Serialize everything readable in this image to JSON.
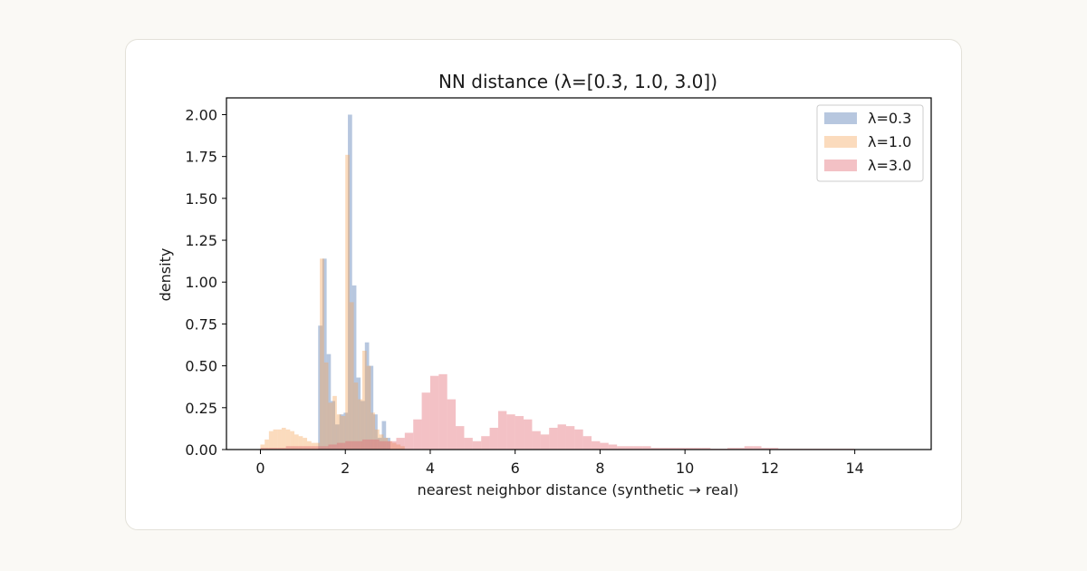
{
  "chart_data": {
    "type": "histogram",
    "title": "NN distance (λ=[0.3, 1.0, 3.0])",
    "xlabel": "nearest neighbor distance (synthetic → real)",
    "ylabel": "density",
    "xlim": [
      -0.8,
      15.8
    ],
    "ylim": [
      0,
      2.1
    ],
    "xticks": [
      "0",
      "2",
      "4",
      "6",
      "8",
      "10",
      "12",
      "14"
    ],
    "xtick_values": [
      0,
      2,
      4,
      6,
      8,
      10,
      12,
      14
    ],
    "yticks": [
      "0.00",
      "0.25",
      "0.50",
      "0.75",
      "1.00",
      "1.25",
      "1.50",
      "1.75",
      "2.00"
    ],
    "ytick_values": [
      0,
      0.25,
      0.5,
      0.75,
      1.0,
      1.25,
      1.5,
      1.75,
      2.0
    ],
    "legend_position": "top-right",
    "grid": false,
    "series": [
      {
        "name": "λ=0.3",
        "color": "#4c72b0",
        "bins": [
          [
            1.36,
            1.46,
            0.74
          ],
          [
            1.46,
            1.56,
            1.14
          ],
          [
            1.56,
            1.66,
            0.57
          ],
          [
            1.66,
            1.76,
            0.29
          ],
          [
            1.76,
            1.86,
            0.15
          ],
          [
            1.86,
            1.96,
            0.21
          ],
          [
            1.96,
            2.06,
            0.22
          ],
          [
            2.06,
            2.16,
            2.0
          ],
          [
            2.16,
            2.26,
            0.98
          ],
          [
            2.26,
            2.36,
            0.43
          ],
          [
            2.36,
            2.46,
            0.29
          ],
          [
            2.46,
            2.56,
            0.64
          ],
          [
            2.56,
            2.66,
            0.5
          ],
          [
            2.66,
            2.76,
            0.21
          ],
          [
            2.76,
            2.86,
            0.07
          ],
          [
            2.86,
            2.96,
            0.17
          ],
          [
            2.96,
            3.06,
            0.07
          ]
        ]
      },
      {
        "name": "λ=1.0",
        "color": "#f5a45a",
        "bins": [
          [
            0.0,
            0.1,
            0.03
          ],
          [
            0.1,
            0.2,
            0.06
          ],
          [
            0.2,
            0.3,
            0.11
          ],
          [
            0.3,
            0.4,
            0.12
          ],
          [
            0.4,
            0.5,
            0.12
          ],
          [
            0.5,
            0.6,
            0.13
          ],
          [
            0.6,
            0.7,
            0.12
          ],
          [
            0.7,
            0.8,
            0.11
          ],
          [
            0.8,
            0.9,
            0.09
          ],
          [
            0.9,
            1.0,
            0.08
          ],
          [
            1.0,
            1.1,
            0.07
          ],
          [
            1.1,
            1.2,
            0.05
          ],
          [
            1.2,
            1.3,
            0.04
          ],
          [
            1.3,
            1.4,
            0.04
          ],
          [
            1.4,
            1.5,
            1.14
          ],
          [
            1.5,
            1.6,
            0.52
          ],
          [
            1.6,
            1.7,
            0.28
          ],
          [
            1.7,
            1.8,
            0.32
          ],
          [
            1.8,
            1.9,
            0.21
          ],
          [
            1.9,
            2.0,
            0.2
          ],
          [
            2.0,
            2.1,
            1.76
          ],
          [
            2.1,
            2.2,
            0.88
          ],
          [
            2.2,
            2.3,
            0.4
          ],
          [
            2.3,
            2.4,
            0.3
          ],
          [
            2.4,
            2.5,
            0.59
          ],
          [
            2.5,
            2.6,
            0.5
          ],
          [
            2.6,
            2.7,
            0.22
          ],
          [
            2.7,
            2.8,
            0.12
          ],
          [
            2.8,
            2.9,
            0.09
          ],
          [
            2.9,
            3.0,
            0.07
          ],
          [
            3.0,
            3.1,
            0.05
          ],
          [
            3.1,
            3.2,
            0.04
          ],
          [
            3.2,
            3.3,
            0.03
          ],
          [
            3.3,
            3.4,
            0.02
          ]
        ]
      },
      {
        "name": "λ=3.0",
        "color": "#e0656e",
        "bins": [
          [
            0.0,
            0.2,
            0.01
          ],
          [
            0.2,
            0.4,
            0.01
          ],
          [
            0.4,
            0.6,
            0.01
          ],
          [
            0.6,
            0.8,
            0.02
          ],
          [
            0.8,
            1.0,
            0.02
          ],
          [
            1.0,
            1.2,
            0.02
          ],
          [
            1.2,
            1.4,
            0.02
          ],
          [
            1.4,
            1.6,
            0.02
          ],
          [
            1.6,
            1.8,
            0.03
          ],
          [
            1.8,
            2.0,
            0.04
          ],
          [
            2.0,
            2.2,
            0.05
          ],
          [
            2.2,
            2.4,
            0.05
          ],
          [
            2.4,
            2.6,
            0.06
          ],
          [
            2.6,
            2.8,
            0.06
          ],
          [
            2.8,
            3.0,
            0.05
          ],
          [
            3.0,
            3.2,
            0.05
          ],
          [
            3.2,
            3.4,
            0.07
          ],
          [
            3.4,
            3.6,
            0.1
          ],
          [
            3.6,
            3.8,
            0.18
          ],
          [
            3.8,
            4.0,
            0.34
          ],
          [
            4.0,
            4.2,
            0.44
          ],
          [
            4.2,
            4.4,
            0.45
          ],
          [
            4.4,
            4.6,
            0.3
          ],
          [
            4.6,
            4.8,
            0.14
          ],
          [
            4.8,
            5.0,
            0.07
          ],
          [
            5.0,
            5.2,
            0.05
          ],
          [
            5.2,
            5.4,
            0.08
          ],
          [
            5.4,
            5.6,
            0.13
          ],
          [
            5.6,
            5.8,
            0.23
          ],
          [
            5.8,
            6.0,
            0.21
          ],
          [
            6.0,
            6.2,
            0.2
          ],
          [
            6.2,
            6.4,
            0.18
          ],
          [
            6.4,
            6.6,
            0.11
          ],
          [
            6.6,
            6.8,
            0.09
          ],
          [
            6.8,
            7.0,
            0.13
          ],
          [
            7.0,
            7.2,
            0.15
          ],
          [
            7.2,
            7.4,
            0.14
          ],
          [
            7.4,
            7.6,
            0.12
          ],
          [
            7.6,
            7.8,
            0.08
          ],
          [
            7.8,
            8.0,
            0.05
          ],
          [
            8.0,
            8.2,
            0.04
          ],
          [
            8.2,
            8.4,
            0.03
          ],
          [
            8.4,
            8.6,
            0.02
          ],
          [
            8.6,
            8.8,
            0.02
          ],
          [
            8.8,
            9.0,
            0.02
          ],
          [
            9.0,
            9.2,
            0.02
          ],
          [
            9.2,
            9.4,
            0.01
          ],
          [
            9.4,
            9.6,
            0.01
          ],
          [
            9.6,
            9.8,
            0.01
          ],
          [
            9.8,
            10.0,
            0.01
          ],
          [
            10.0,
            10.2,
            0.01
          ],
          [
            10.2,
            10.4,
            0.01
          ],
          [
            10.4,
            10.6,
            0.01
          ],
          [
            10.6,
            10.8,
            0.005
          ],
          [
            10.8,
            11.0,
            0.005
          ],
          [
            11.0,
            11.2,
            0.01
          ],
          [
            11.2,
            11.4,
            0.01
          ],
          [
            11.4,
            11.6,
            0.02
          ],
          [
            11.6,
            11.8,
            0.02
          ],
          [
            11.8,
            12.0,
            0.01
          ],
          [
            12.0,
            12.2,
            0.01
          ],
          [
            12.2,
            12.4,
            0.005
          ],
          [
            12.4,
            12.6,
            0.005
          ],
          [
            12.6,
            12.8,
            0.005
          ],
          [
            12.8,
            13.0,
            0.005
          ],
          [
            13.0,
            13.2,
            0.005
          ],
          [
            13.2,
            13.4,
            0.005
          ],
          [
            13.4,
            13.6,
            0.005
          ],
          [
            13.6,
            13.8,
            0.005
          ],
          [
            13.8,
            14.0,
            0.005
          ]
        ]
      }
    ]
  }
}
